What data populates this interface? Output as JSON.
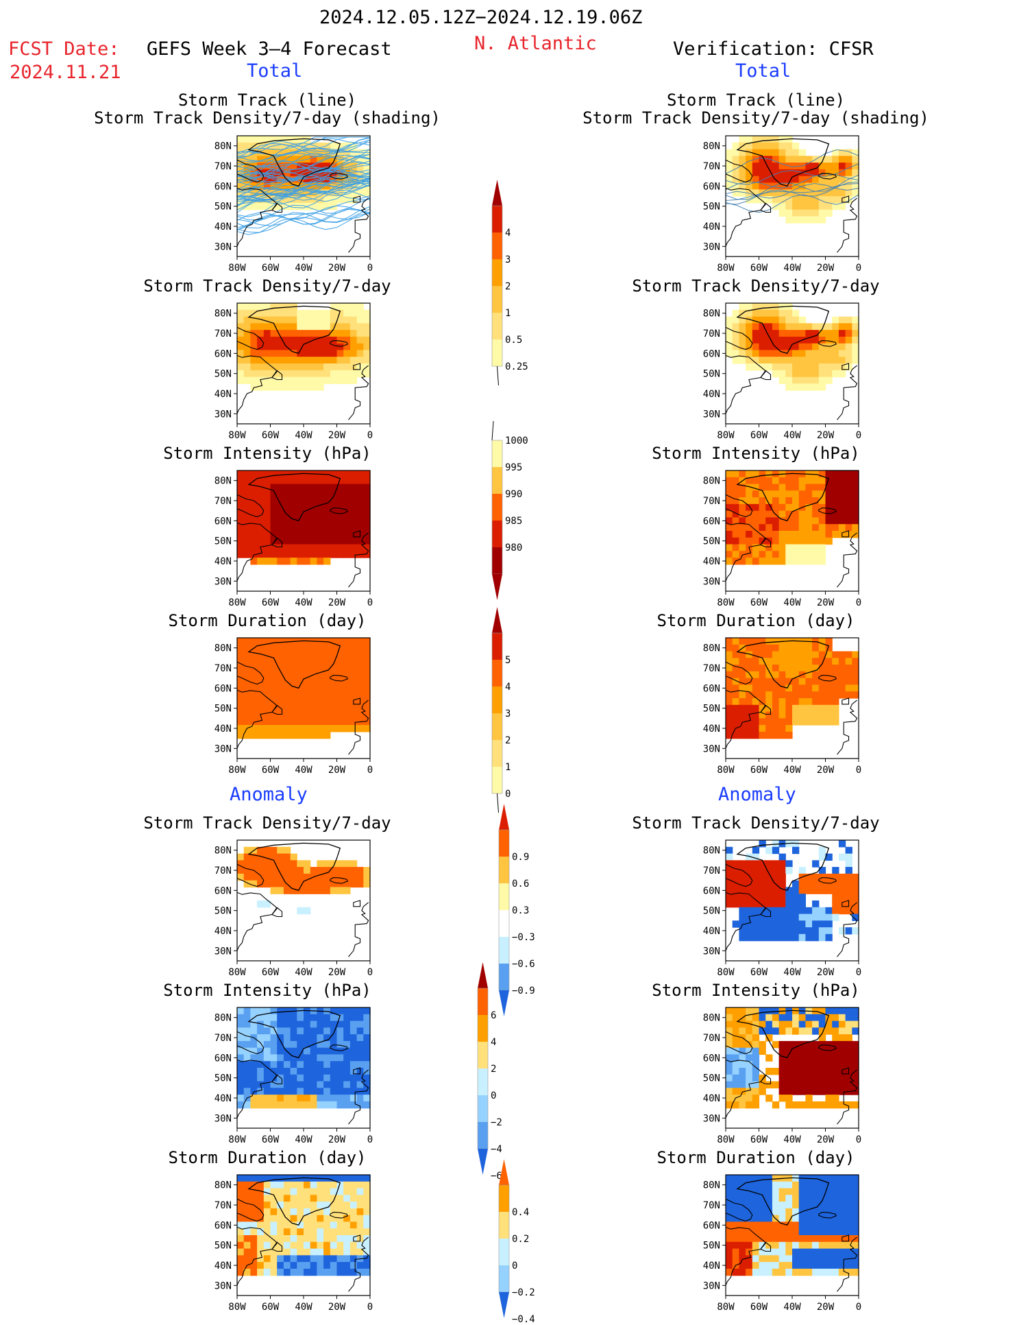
{
  "header": {
    "period": "2024.12.05.12Z−2024.12.19.06Z",
    "fcst_label": "FCST Date:",
    "fcst_date": "2024.11.21",
    "model_title": "GEFS Week 3–4 Forecast",
    "region": "N. Atlantic",
    "verification": "Verification: CFSR"
  },
  "sections": {
    "total": "Total",
    "anomaly": "Anomaly"
  },
  "panel_titles": {
    "track_line": "Storm Track (line)",
    "track_shading": "Storm Track Density/7-day (shading)",
    "density": "Storm Track Density/7-day",
    "intensity": "Storm Intensity (hPa)",
    "duration": "Storm Duration (day)"
  },
  "axes": {
    "lat_ticks": [
      "80N",
      "70N",
      "60N",
      "50N",
      "40N",
      "30N"
    ],
    "lon_ticks": [
      "80W",
      "60W",
      "40W",
      "20W",
      "0"
    ]
  },
  "colorbars": {
    "density_total": [
      "4",
      "3",
      "2",
      "1",
      "0.5",
      "0.25"
    ],
    "intensity_total": [
      "1000",
      "995",
      "990",
      "985",
      "980"
    ],
    "duration_total": [
      "5",
      "4",
      "3",
      "2",
      "1",
      "0"
    ],
    "density_anom": [
      "0.9",
      "0.6",
      "0.3",
      "−0.3",
      "−0.6",
      "−0.9"
    ],
    "intensity_anom": [
      "6",
      "4",
      "2",
      "0",
      "−2",
      "−4",
      "−6"
    ],
    "duration_anom": [
      "0.4",
      "0.2",
      "0",
      "−0.2",
      "−0.4"
    ]
  },
  "colors": {
    "red_text": "#e8242c",
    "blue_text": "#1a3cff",
    "warm": [
      "#fffaa8",
      "#ffe07a",
      "#ffc540",
      "#ffa000",
      "#ff6200",
      "#dc1e00",
      "#a00000"
    ],
    "cool": [
      "#c8f0ff",
      "#96d2ff",
      "#5aa0f0",
      "#1e64dc"
    ],
    "track_line": "#3ca0e6"
  }
}
